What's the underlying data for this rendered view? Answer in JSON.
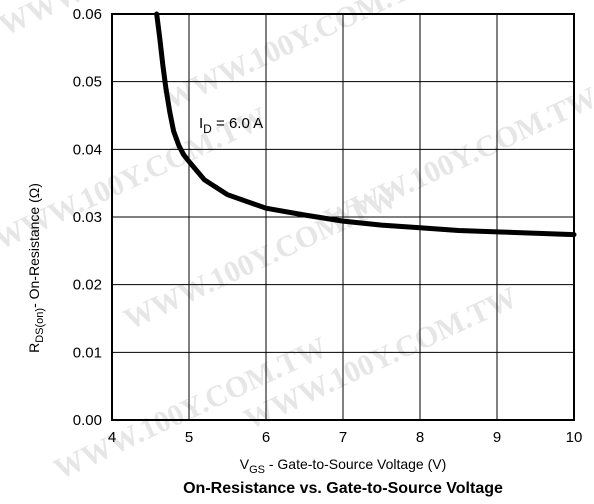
{
  "chart_data": {
    "type": "line",
    "title": "On-Resistance vs. Gate-to-Source Voltage",
    "xlabel": {
      "main": "V",
      "sub": "GS",
      "rest": " - Gate-to-Source Voltage (V)"
    },
    "ylabel": {
      "main": "R",
      "sub": "DS(on)",
      "rest": "- On-Resistance (Ω)"
    },
    "xlim": [
      4,
      10
    ],
    "ylim": [
      0,
      0.06
    ],
    "x_ticks": [
      "4",
      "5",
      "6",
      "7",
      "8",
      "9",
      "10"
    ],
    "y_ticks": [
      "0.00",
      "0.01",
      "0.02",
      "0.03",
      "0.04",
      "0.05",
      "0.06"
    ],
    "grid": true,
    "annotation": {
      "main": "I",
      "sub": "D",
      "rest": " = 6.0 A"
    },
    "watermark": "WWW.100Y.COM.TW",
    "series": [
      {
        "x": [
          4.58,
          4.62,
          4.66,
          4.7,
          4.75,
          4.8,
          4.87,
          4.93,
          5.0,
          5.2,
          5.5,
          6.0,
          6.5,
          7.0,
          7.5,
          8.0,
          8.5,
          9.0,
          9.5,
          10.0
        ],
        "y": [
          0.06,
          0.0565,
          0.0525,
          0.049,
          0.0455,
          0.0427,
          0.0405,
          0.0392,
          0.0382,
          0.0355,
          0.0333,
          0.0313,
          0.0303,
          0.0294,
          0.0288,
          0.0284,
          0.028,
          0.0278,
          0.0276,
          0.0274
        ]
      }
    ]
  }
}
